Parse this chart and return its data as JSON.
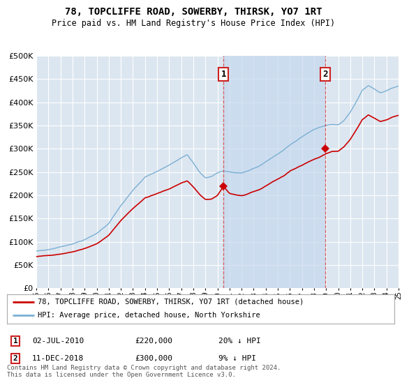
{
  "title": "78, TOPCLIFFE ROAD, SOWERBY, THIRSK, YO7 1RT",
  "subtitle": "Price paid vs. HM Land Registry's House Price Index (HPI)",
  "ylim": [
    0,
    500000
  ],
  "yticks": [
    0,
    50000,
    100000,
    150000,
    200000,
    250000,
    300000,
    350000,
    400000,
    450000,
    500000
  ],
  "background_color": "#ffffff",
  "plot_bg_color": "#dce6f0",
  "grid_color": "#ffffff",
  "hpi_color": "#7bafd4",
  "price_color": "#cc0000",
  "sale1_x": 2010.5,
  "sale1_price": 220000,
  "sale1_label": "1",
  "sale1_date_str": "02-JUL-2010",
  "sale1_pct": "20% ↓ HPI",
  "sale2_x": 2018.92,
  "sale2_price": 300000,
  "sale2_label": "2",
  "sale2_date_str": "11-DEC-2018",
  "sale2_pct": "9% ↓ HPI",
  "legend_line1": "78, TOPCLIFFE ROAD, SOWERBY, THIRSK, YO7 1RT (detached house)",
  "legend_line2": "HPI: Average price, detached house, North Yorkshire",
  "footnote": "Contains HM Land Registry data © Crown copyright and database right 2024.\nThis data is licensed under the Open Government Licence v3.0.",
  "xmin": 1995,
  "xmax": 2025
}
